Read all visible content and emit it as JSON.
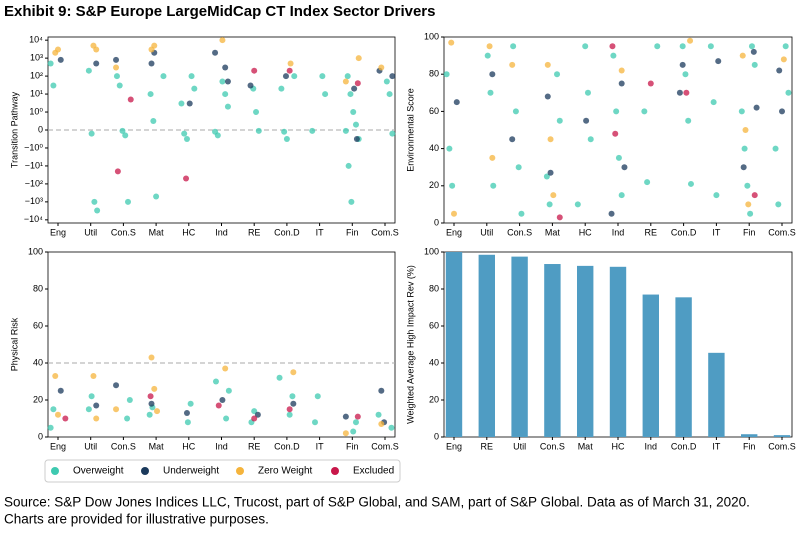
{
  "title": "Exhibit 9: S&P Europe LargeMidCap CT Index Sector Drivers",
  "source": [
    "Source: S&P Dow Jones Indices LLC, Trucost, part of S&P Global, and SAM, part of S&P Global.  Data as of March 31, 2020.",
    "Charts are provided for illustrative purposes."
  ],
  "chart_data": [
    {
      "type": "strip",
      "ylabel": "Transition Pathway",
      "yscale": "symlog",
      "hline": 0,
      "categories": [
        "Eng",
        "Util",
        "Con.S",
        "Mat",
        "HC",
        "Ind",
        "RE",
        "Con.D",
        "IT",
        "Fin",
        "Com.S"
      ],
      "ylim": [
        -15000,
        15000
      ],
      "yticks": [
        {
          "value": -10000,
          "label": "−10⁴"
        },
        {
          "value": -1000,
          "label": "−10³"
        },
        {
          "value": -100,
          "label": "−10²"
        },
        {
          "value": -10,
          "label": "−10¹"
        },
        {
          "value": -1,
          "label": "−10⁰"
        },
        0,
        {
          "value": 1,
          "label": "10⁰"
        },
        {
          "value": 10,
          "label": "10¹"
        },
        {
          "value": 100,
          "label": "10²"
        },
        {
          "value": 1000,
          "label": "10³"
        },
        {
          "value": 10000,
          "label": "10⁴"
        }
      ],
      "series": [
        {
          "name": "Overweight",
          "color": "#3ec9b0",
          "x": [
            "Eng",
            "Eng",
            "Util",
            "Util",
            "Util",
            "Util",
            "Con.S",
            "Con.S",
            "Con.S",
            "Con.S",
            "Con.S",
            "Mat",
            "Mat",
            "Mat",
            "Mat",
            "HC",
            "HC",
            "HC",
            "HC",
            "HC",
            "Ind",
            "Ind",
            "Ind",
            "Ind",
            "Ind",
            "RE",
            "RE",
            "RE",
            "Con.D",
            "Con.D",
            "Con.D",
            "Con.D",
            "IT",
            "IT",
            "IT",
            "Fin",
            "Fin",
            "Fin",
            "Fin",
            "Fin",
            "Fin",
            "Fin",
            "Fin",
            "Com.S",
            "Com.S",
            "Com.S"
          ],
          "values": [
            500,
            30,
            200,
            -0.2,
            -1000,
            -3000,
            100,
            30,
            -0.05,
            -0.3,
            -1000,
            100,
            10,
            0.5,
            -500,
            100,
            20,
            3,
            -0.2,
            -0.5,
            50,
            10,
            2,
            -0.1,
            -0.3,
            20,
            1,
            -0.05,
            100,
            20,
            -0.1,
            -0.5,
            100,
            10,
            -0.05,
            100,
            10,
            1,
            0.3,
            -0.5,
            -0.05,
            -10,
            -1000,
            50,
            10,
            -0.2
          ]
        },
        {
          "name": "Underweight",
          "color": "#1b3a5c",
          "x": [
            "Eng",
            "Util",
            "Con.S",
            "Mat",
            "Mat",
            "HC",
            "Ind",
            "Ind",
            "Ind",
            "RE",
            "Con.D",
            "Fin",
            "Fin",
            "Com.S",
            "Com.S"
          ],
          "values": [
            800,
            500,
            800,
            500,
            2000,
            3,
            300,
            50,
            2000,
            30,
            100,
            20,
            -0.5,
            100,
            200
          ]
        },
        {
          "name": "Zero Weight",
          "color": "#f5b43c",
          "x": [
            "Eng",
            "Eng",
            "Util",
            "Util",
            "Con.S",
            "Mat",
            "Mat",
            "Ind",
            "Con.D",
            "Fin",
            "Fin",
            "Com.S"
          ],
          "values": [
            2000,
            3000,
            5000,
            3000,
            300,
            3000,
            5000,
            10000,
            500,
            1000,
            50,
            300
          ]
        },
        {
          "name": "Excluded",
          "color": "#c8174a",
          "x": [
            "Con.S",
            "Con.S",
            "HC",
            "RE",
            "Con.D",
            "Fin"
          ],
          "values": [
            5,
            -20,
            -50,
            200,
            200,
            40
          ]
        }
      ]
    },
    {
      "type": "strip",
      "ylabel": "Environmental Score",
      "categories": [
        "Eng",
        "Util",
        "Con.S",
        "Mat",
        "HC",
        "Ind",
        "RE",
        "Con.D",
        "IT",
        "Fin",
        "Com.S"
      ],
      "ylim": [
        0,
        100
      ],
      "yticks": [
        0,
        20,
        40,
        60,
        80,
        100
      ],
      "series": [
        {
          "name": "Overweight",
          "color": "#3ec9b0",
          "x": [
            "Eng",
            "Eng",
            "Eng",
            "Util",
            "Util",
            "Util",
            "Con.S",
            "Con.S",
            "Con.S",
            "Con.S",
            "Mat",
            "Mat",
            "Mat",
            "Mat",
            "HC",
            "HC",
            "HC",
            "HC",
            "Ind",
            "Ind",
            "Ind",
            "Ind",
            "RE",
            "RE",
            "RE",
            "Con.D",
            "Con.D",
            "Con.D",
            "Con.D",
            "IT",
            "IT",
            "IT",
            "Fin",
            "Fin",
            "Fin",
            "Fin",
            "Fin",
            "Fin",
            "Com.S",
            "Com.S",
            "Com.S",
            "Com.S"
          ],
          "values": [
            80,
            40,
            20,
            90,
            70,
            20,
            95,
            60,
            30,
            5,
            80,
            55,
            25,
            10,
            95,
            70,
            45,
            10,
            90,
            60,
            35,
            15,
            95,
            60,
            22,
            95,
            80,
            55,
            21,
            95,
            65,
            15,
            95,
            85,
            60,
            40,
            20,
            5,
            95,
            70,
            40,
            10
          ]
        },
        {
          "name": "Underweight",
          "color": "#1b3a5c",
          "x": [
            "Eng",
            "Util",
            "Con.S",
            "Mat",
            "Mat",
            "HC",
            "Ind",
            "Ind",
            "Ind",
            "Con.D",
            "Con.D",
            "IT",
            "Fin",
            "Fin",
            "Fin",
            "Com.S",
            "Com.S"
          ],
          "values": [
            65,
            80,
            45,
            68,
            27,
            55,
            75,
            30,
            5,
            70,
            85,
            87,
            92,
            62,
            30,
            82,
            60
          ]
        },
        {
          "name": "Zero Weight",
          "color": "#f5b43c",
          "x": [
            "Eng",
            "Eng",
            "Util",
            "Util",
            "Con.S",
            "Mat",
            "Mat",
            "Mat",
            "Ind",
            "Con.D",
            "Fin",
            "Fin",
            "Fin",
            "Com.S"
          ],
          "values": [
            97,
            5,
            95,
            35,
            85,
            85,
            45,
            15,
            82,
            98,
            90,
            50,
            10,
            88
          ]
        },
        {
          "name": "Excluded",
          "color": "#c8174a",
          "x": [
            "Mat",
            "Ind",
            "Ind",
            "RE",
            "Con.D",
            "Fin"
          ],
          "values": [
            3,
            95,
            48,
            75,
            70,
            15
          ]
        }
      ]
    },
    {
      "type": "strip",
      "ylabel": "Physical Risk",
      "hline": 40,
      "categories": [
        "Eng",
        "Util",
        "Con.S",
        "Mat",
        "HC",
        "Ind",
        "RE",
        "Con.D",
        "IT",
        "Fin",
        "Com.S"
      ],
      "ylim": [
        0,
        100
      ],
      "yticks": [
        0,
        20,
        40,
        60,
        80,
        100
      ],
      "series": [
        {
          "name": "Overweight",
          "color": "#3ec9b0",
          "x": [
            "Eng",
            "Eng",
            "Util",
            "Util",
            "Con.S",
            "Con.S",
            "Mat",
            "Mat",
            "HC",
            "HC",
            "Ind",
            "Ind",
            "Ind",
            "RE",
            "RE",
            "Con.D",
            "Con.D",
            "Con.D",
            "IT",
            "IT",
            "Fin",
            "Fin",
            "Com.S",
            "Com.S"
          ],
          "values": [
            5,
            15,
            15,
            22,
            10,
            20,
            12,
            16,
            8,
            18,
            10,
            25,
            30,
            8,
            14,
            12,
            22,
            32,
            8,
            22,
            3,
            8,
            5,
            12
          ]
        },
        {
          "name": "Underweight",
          "color": "#1b3a5c",
          "x": [
            "Eng",
            "Util",
            "Con.S",
            "Mat",
            "HC",
            "Ind",
            "RE",
            "Con.D",
            "Fin",
            "Com.S",
            "Com.S"
          ],
          "values": [
            25,
            17,
            28,
            18,
            13,
            20,
            12,
            18,
            11,
            25,
            8
          ]
        },
        {
          "name": "Zero Weight",
          "color": "#f5b43c",
          "x": [
            "Eng",
            "Eng",
            "Util",
            "Util",
            "Con.S",
            "Mat",
            "Mat",
            "Mat",
            "Ind",
            "Con.D",
            "Fin",
            "Com.S"
          ],
          "values": [
            33,
            12,
            33,
            10,
            15,
            43,
            26,
            14,
            37,
            35,
            2,
            7
          ]
        },
        {
          "name": "Excluded",
          "color": "#c8174a",
          "x": [
            "Eng",
            "Mat",
            "Ind",
            "RE",
            "Con.D",
            "Fin"
          ],
          "values": [
            10,
            22,
            17,
            10,
            15,
            11
          ]
        }
      ]
    },
    {
      "type": "bar",
      "ylabel": "Weighted Average High Impact Rev (%)",
      "color": "#4f9cc3",
      "categories": [
        "Eng",
        "RE",
        "Util",
        "Con.S",
        "Mat",
        "HC",
        "Ind",
        "Con.D",
        "IT",
        "Fin",
        "Com.S"
      ],
      "values": [
        100,
        98.5,
        97.5,
        93.5,
        92.5,
        92,
        77,
        75.5,
        45.5,
        1.5,
        1
      ],
      "ylim": [
        0,
        100
      ],
      "yticks": [
        0,
        20,
        40,
        60,
        80,
        100
      ]
    }
  ]
}
